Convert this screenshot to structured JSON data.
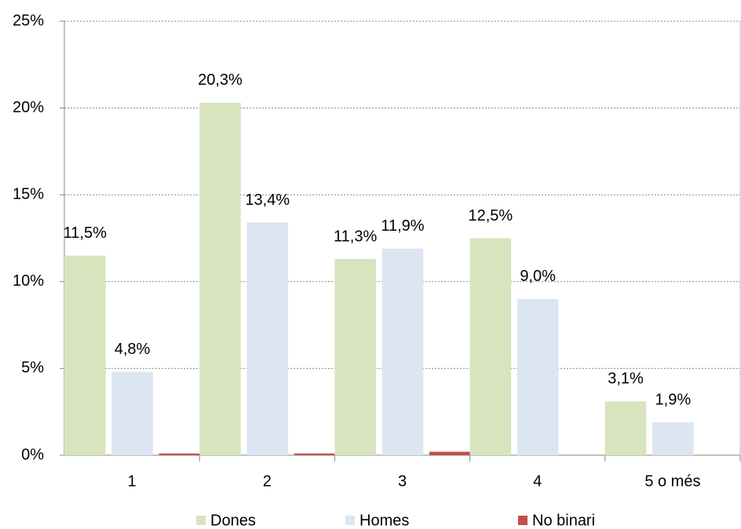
{
  "chart_data": {
    "type": "bar",
    "categories": [
      "1",
      "2",
      "3",
      "4",
      "5 o més"
    ],
    "series": [
      {
        "name": "Dones",
        "color": "#d7e4bd",
        "values": [
          11.5,
          20.3,
          11.3,
          12.5,
          3.1
        ],
        "value_labels": [
          "11,5%",
          "20,3%",
          "11,3%",
          "12,5%",
          "3,1%"
        ]
      },
      {
        "name": "Homes",
        "color": "#dce6f2",
        "values": [
          4.8,
          13.4,
          11.9,
          9.0,
          1.9
        ],
        "value_labels": [
          "4,8%",
          "13,4%",
          "11,9%",
          "9,0%",
          "1,9%"
        ]
      },
      {
        "name": "No binari",
        "color": "#c0504d",
        "values": [
          0.1,
          0.1,
          0.2,
          0,
          0
        ]
      }
    ],
    "ylim": [
      0,
      25
    ],
    "yticks": [
      {
        "value": 0,
        "label": "0%"
      },
      {
        "value": 5,
        "label": "5%"
      },
      {
        "value": 10,
        "label": "10%"
      },
      {
        "value": 15,
        "label": "15%"
      },
      {
        "value": 20,
        "label": "20%"
      },
      {
        "value": 25,
        "label": "25%"
      }
    ],
    "grid": true,
    "legend": "bottom"
  }
}
